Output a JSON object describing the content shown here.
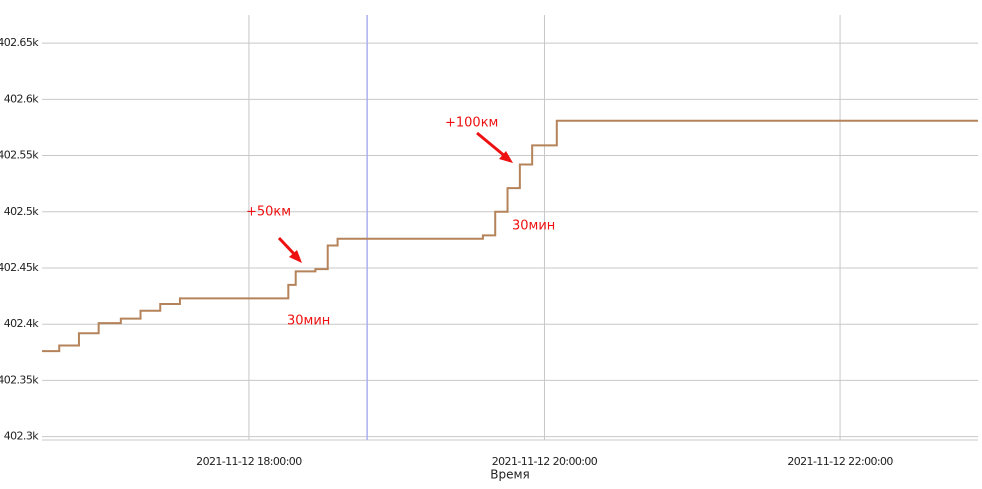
{
  "chart_data": {
    "type": "line",
    "step": "post",
    "x_label": "Время",
    "x": [
      "2021-11-12 16:36",
      "2021-11-12 16:43",
      "2021-11-12 16:51",
      "2021-11-12 16:59",
      "2021-11-12 17:08",
      "2021-11-12 17:16",
      "2021-11-12 17:24",
      "2021-11-12 17:32",
      "2021-11-12 18:16",
      "2021-11-12 18:19",
      "2021-11-12 18:27",
      "2021-11-12 18:32",
      "2021-11-12 18:36",
      "2021-11-12 19:35",
      "2021-11-12 19:40",
      "2021-11-12 19:45",
      "2021-11-12 19:50",
      "2021-11-12 19:55",
      "2021-11-12 20:05",
      "2021-11-12 22:56"
    ],
    "series": [
      {
        "color": "#b5835a",
        "values": [
          402376,
          402381,
          402392,
          402401,
          402405,
          402412,
          402418,
          402423,
          402435,
          402447,
          402449,
          402470,
          402476,
          402479,
          402500,
          402521,
          402542,
          402559,
          402581,
          402581
        ]
      }
    ],
    "xlim": [
      "2021-11-12 16:36",
      "2021-11-12 22:56"
    ],
    "xticks": [
      {
        "value": "2021-11-12 18:00",
        "label": "2021-11-12 18:00:00"
      },
      {
        "value": "2021-11-12 20:00",
        "label": "2021-11-12 20:00:00"
      },
      {
        "value": "2021-11-12 22:00",
        "label": "2021-11-12 22:00:00"
      }
    ],
    "ylim": [
      402297,
      402675
    ],
    "yticks": [
      {
        "value": 402300,
        "label": "402.3k"
      },
      {
        "value": 402350,
        "label": "402.35k"
      },
      {
        "value": 402400,
        "label": "402.4k"
      },
      {
        "value": 402450,
        "label": "402.45k"
      },
      {
        "value": 402500,
        "label": "402.5k"
      },
      {
        "value": 402550,
        "label": "402.55k"
      },
      {
        "value": 402600,
        "label": "402.6k"
      },
      {
        "value": 402650,
        "label": "402.65k"
      }
    ],
    "grid": true,
    "cursor_x": "2021-11-12 18:48",
    "cursor_color": "#aab0f0",
    "annotation_color": "#ee1111",
    "annotations": [
      "+50км",
      "30мин",
      "+100км",
      "30мин"
    ]
  }
}
